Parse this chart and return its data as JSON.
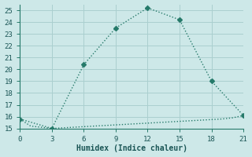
{
  "xlabel": "Humidex (Indice chaleur)",
  "ylabel": "",
  "background_color": "#cde8e8",
  "grid_color": "#aacfcf",
  "line_color": "#267a6a",
  "axis_color": "#267a6a",
  "xlim": [
    0,
    21
  ],
  "ylim": [
    15,
    25.5
  ],
  "xticks": [
    0,
    3,
    6,
    9,
    12,
    15,
    18,
    21
  ],
  "yticks": [
    15,
    16,
    17,
    18,
    19,
    20,
    21,
    22,
    23,
    24,
    25
  ],
  "series1_x": [
    0,
    3,
    6,
    9,
    12,
    15,
    18,
    21
  ],
  "series1_y": [
    15.8,
    15.0,
    20.4,
    23.5,
    25.2,
    24.2,
    19.0,
    16.1
  ],
  "series2_x": [
    0,
    1,
    2,
    3,
    4,
    5,
    6,
    7,
    8,
    9,
    10,
    11,
    12,
    13,
    14,
    15,
    16,
    17,
    18,
    19,
    20,
    21
  ],
  "series2_y": [
    15.8,
    15.2,
    15.1,
    15.0,
    15.05,
    15.1,
    15.15,
    15.2,
    15.25,
    15.3,
    15.35,
    15.4,
    15.45,
    15.5,
    15.55,
    15.6,
    15.65,
    15.7,
    15.75,
    15.8,
    15.9,
    16.1
  ],
  "marker": "D",
  "marker_size": 3,
  "linewidth": 1.0
}
